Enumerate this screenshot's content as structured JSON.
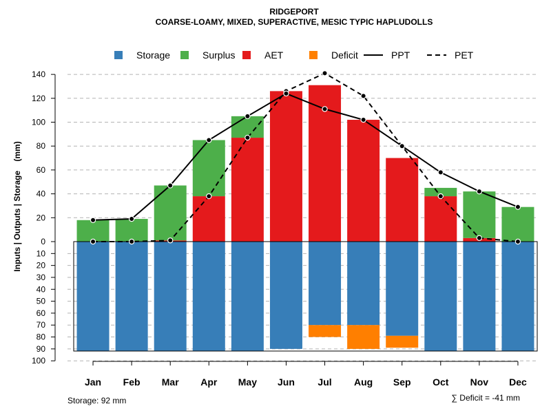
{
  "chart_data": {
    "type": "bar",
    "title": "RIDGEPORT",
    "subtitle": "COARSE-LOAMY, MIXED, SUPERACTIVE, MESIC TYPIC HAPLUDOLLS",
    "ylabel": "Inputs | Outputs | Storage    (mm)",
    "ylim_upper": [
      0,
      140
    ],
    "ylim_lower": [
      0,
      100
    ],
    "upper_ticks": [
      0,
      20,
      40,
      60,
      80,
      100,
      120,
      140
    ],
    "lower_ticks": [
      10,
      20,
      30,
      40,
      50,
      60,
      70,
      80,
      90,
      100
    ],
    "categories": [
      "Jan",
      "Feb",
      "Mar",
      "Apr",
      "May",
      "Jun",
      "Jul",
      "Aug",
      "Sep",
      "Oct",
      "Nov",
      "Dec"
    ],
    "colors": {
      "storage": "#377EB8",
      "surplus": "#4DAF4A",
      "aet": "#E41A1C",
      "deficit": "#FF7F00",
      "line": "#000000",
      "grid": "#b3b3b3"
    },
    "legend": [
      {
        "key": "storage",
        "label": "Storage",
        "kind": "box"
      },
      {
        "key": "surplus",
        "label": "Surplus",
        "kind": "box"
      },
      {
        "key": "aet",
        "label": "AET",
        "kind": "box"
      },
      {
        "key": "deficit",
        "label": "Deficit",
        "kind": "box"
      },
      {
        "key": "ppt",
        "label": "PPT",
        "kind": "solid"
      },
      {
        "key": "pet",
        "label": "PET",
        "kind": "dashed"
      }
    ],
    "series": [
      {
        "name": "AET",
        "values": [
          0,
          0,
          1,
          38,
          87,
          126,
          131,
          102,
          70,
          38,
          3,
          0
        ]
      },
      {
        "name": "Surplus",
        "values": [
          18,
          19,
          46,
          47,
          18,
          0,
          0,
          0,
          0,
          7,
          39,
          29
        ]
      },
      {
        "name": "PPT",
        "values": [
          18,
          19,
          47,
          85,
          105,
          124,
          111,
          102,
          80,
          58,
          42,
          29
        ]
      },
      {
        "name": "PET",
        "values": [
          0,
          0,
          1,
          38,
          87,
          126,
          141,
          122,
          80,
          38,
          3,
          0
        ]
      },
      {
        "name": "Storage",
        "values": [
          92,
          92,
          92,
          92,
          92,
          90,
          70,
          70,
          79,
          92,
          92,
          92
        ]
      },
      {
        "name": "Deficit",
        "values": [
          0,
          0,
          0,
          0,
          0,
          0,
          10,
          20,
          10,
          0,
          0,
          0
        ]
      }
    ]
  },
  "footer": {
    "storage_note": "Storage: 92 mm",
    "deficit_note": "∑ Deficit = -41 mm"
  }
}
